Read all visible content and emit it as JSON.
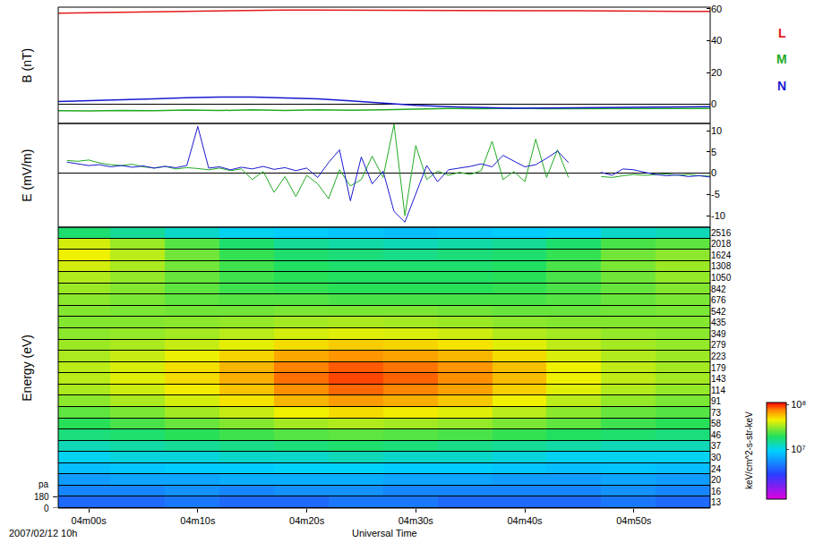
{
  "chart_data": [
    {
      "type": "line",
      "ylabel": "B (nT)",
      "xlim": [
        -2.8,
        57
      ],
      "ylim": [
        -12,
        61
      ],
      "yticks": [
        0,
        20,
        40,
        60
      ],
      "grid": false,
      "tick_labels": "y",
      "legend": "right",
      "x": [
        -2.8,
        0,
        3,
        6,
        9,
        12,
        15,
        18,
        21,
        24,
        27,
        30,
        33,
        36,
        39,
        42,
        45,
        48,
        51,
        54,
        57
      ],
      "series": [
        {
          "name": "L",
          "color": "#e41a1a",
          "values": [
            57.2,
            57.5,
            57.9,
            58.3,
            58.6,
            58.9,
            59.1,
            59.2,
            59.2,
            59.2,
            59.1,
            59.0,
            58.9,
            58.9,
            58.8,
            58.8,
            58.7,
            58.6,
            58.5,
            58.4,
            58.3
          ]
        },
        {
          "name": "M",
          "color": "#22aa22",
          "values": [
            -4.0,
            -4.2,
            -3.8,
            -4.0,
            -3.6,
            -3.9,
            -3.5,
            -3.8,
            -3.4,
            -3.7,
            -3.5,
            -3.0,
            -2.6,
            -2.8,
            -2.5,
            -2.7,
            -2.6,
            -2.8,
            -2.5,
            -2.7,
            -2.6
          ]
        },
        {
          "name": "N",
          "color": "#1a1ad0",
          "values": [
            1.8,
            2.2,
            2.8,
            3.4,
            4.1,
            4.6,
            4.6,
            4.2,
            3.4,
            2.2,
            0.8,
            -0.6,
            -1.5,
            -2.1,
            -2.4,
            -2.3,
            -2.2,
            -2.0,
            -1.8,
            -1.6,
            -1.5
          ]
        }
      ]
    },
    {
      "type": "line",
      "ylabel": "E (mV/m)",
      "xlim": [
        -2.8,
        57
      ],
      "ylim": [
        -12.7,
        11.7
      ],
      "yticks": [
        -10,
        -5,
        0,
        5,
        10
      ],
      "grid": false,
      "tick_labels": "y",
      "x": [
        -2,
        -1,
        0,
        1,
        2,
        3,
        4,
        5,
        6,
        7,
        8,
        9,
        10,
        11,
        12,
        13,
        14,
        15,
        16,
        17,
        18,
        19,
        20,
        21,
        22,
        23,
        24,
        25,
        26,
        27,
        28,
        29,
        30,
        31,
        32,
        33,
        34,
        35,
        36,
        37,
        38,
        39,
        40,
        41,
        42,
        43,
        44,
        45,
        46,
        47,
        48,
        49,
        50,
        51,
        52,
        53,
        54,
        55,
        56,
        57
      ],
      "series": [
        {
          "name": "M",
          "color": "#22aa22",
          "values": [
            3.0,
            2.8,
            3.1,
            2.4,
            2.0,
            1.8,
            2.1,
            1.5,
            1.2,
            1.6,
            1.0,
            1.3,
            1.1,
            0.8,
            1.2,
            0.6,
            1.0,
            -1.5,
            0.4,
            -4.5,
            -0.8,
            -5.5,
            -0.5,
            -2.5,
            -6.0,
            0.8,
            -3.0,
            -1.5,
            4.0,
            -1.0,
            11.5,
            -10.0,
            6.5,
            -1.5,
            0.5,
            -0.5,
            0.2,
            -0.3,
            0.6,
            7.5,
            -1.5,
            0.4,
            -2.0,
            8.0,
            -1.0,
            5.5,
            -1.0,
            null,
            null,
            -0.8,
            -1.0,
            -0.6,
            -0.3,
            -0.5,
            -0.4,
            -0.2,
            -0.5,
            -0.3,
            -0.6,
            -0.7
          ]
        },
        {
          "name": "N",
          "color": "#1a1ad0",
          "values": [
            2.6,
            2.2,
            1.8,
            2.0,
            1.5,
            1.8,
            1.4,
            1.7,
            1.2,
            1.6,
            1.3,
            1.8,
            11.0,
            1.2,
            1.5,
            0.8,
            1.4,
            1.0,
            1.6,
            0.9,
            1.3,
            0.6,
            1.2,
            -1.0,
            2.5,
            5.5,
            -6.5,
            3.8,
            -2.5,
            0.5,
            -9.0,
            -11.5,
            -5.0,
            1.8,
            -2.0,
            0.8,
            1.2,
            1.6,
            2.2,
            1.5,
            4.2,
            2.8,
            1.5,
            2.0,
            3.5,
            5.2,
            2.5,
            null,
            null,
            0.2,
            -0.5,
            1.0,
            0.8,
            0.2,
            -0.3,
            -0.6,
            -0.4,
            -0.8,
            -0.6,
            -0.9
          ]
        }
      ]
    },
    {
      "type": "heatmap",
      "ylabel": "Energy (eV)",
      "xlabel": "Universal Time",
      "date_label": "2007/02/12 10h",
      "pa_label": "pa",
      "pa_ticks": [
        180,
        0
      ],
      "grid": true,
      "xlim": [
        -2.8,
        57
      ],
      "xticks": [
        {
          "value": 0,
          "label": "04m00s"
        },
        {
          "value": 10,
          "label": "04m10s"
        },
        {
          "value": 20,
          "label": "04m20s"
        },
        {
          "value": 30,
          "label": "04m30s"
        },
        {
          "value": 40,
          "label": "04m40s"
        },
        {
          "value": 50,
          "label": "04m50s"
        }
      ],
      "x": [
        -2.8,
        2,
        7,
        12,
        17,
        22,
        27,
        32,
        37,
        42,
        47,
        52,
        57
      ],
      "y": [
        13,
        16,
        20,
        24,
        30,
        37,
        46,
        58,
        73,
        91,
        114,
        143,
        179,
        223,
        279,
        349,
        435,
        542,
        676,
        842,
        1050,
        1308,
        1624,
        2018,
        2516
      ],
      "colorbar_label": "keV/cm^2-s-str-keV",
      "zlim": [
        800000,
        110000000
      ],
      "zticks": [
        {
          "value": 10000000,
          "label": "10⁷"
        },
        {
          "value": 100000000,
          "label": "10⁸"
        }
      ],
      "cells": [
        [
          4000000.0,
          4000000.0,
          4500000.0,
          4000000.0,
          4000000.0,
          4500000.0,
          4500000.0,
          4000000.0,
          4000000.0,
          4000000.0,
          4500000.0,
          4000000.0
        ],
        [
          5000000.0,
          5000000.0,
          5500000.0,
          5000000.0,
          5500000.0,
          5500000.0,
          5000000.0,
          5000000.0,
          5000000.0,
          5000000.0,
          5500000.0,
          5000000.0
        ],
        [
          6000000.0,
          6500000.0,
          6500000.0,
          7000000.0,
          7000000.0,
          7000000.0,
          6500000.0,
          6500000.0,
          6000000.0,
          6000000.0,
          6500000.0,
          6000000.0
        ],
        [
          8000000.0,
          8500000.0,
          9000000.0,
          9000000.0,
          9500000.0,
          9500000.0,
          9000000.0,
          9000000.0,
          8500000.0,
          8000000.0,
          8500000.0,
          8000000.0
        ],
        [
          10000000.0,
          11000000.0,
          11000000.0,
          12000000.0,
          12000000.0,
          13000000.0,
          12000000.0,
          12000000.0,
          11000000.0,
          10000000.0,
          10000000.0,
          10000000.0
        ],
        [
          13000000.0,
          14000000.0,
          15000000.0,
          16000000.0,
          17000000.0,
          18000000.0,
          17000000.0,
          16000000.0,
          15000000.0,
          14000000.0,
          13000000.0,
          13000000.0
        ],
        [
          17000000.0,
          18000000.0,
          20000000.0,
          22000000.0,
          24000000.0,
          25000000.0,
          24000000.0,
          23000000.0,
          21000000.0,
          19000000.0,
          18000000.0,
          17000000.0
        ],
        [
          20000000.0,
          23000000.0,
          26000000.0,
          29000000.0,
          33000000.0,
          35000000.0,
          33000000.0,
          31000000.0,
          28000000.0,
          25000000.0,
          22000000.0,
          20000000.0
        ],
        [
          25000000.0,
          28000000.0,
          33000000.0,
          38000000.0,
          45000000.0,
          50000000.0,
          46000000.0,
          42000000.0,
          36000000.0,
          30000000.0,
          26000000.0,
          24000000.0
        ],
        [
          30000000.0,
          34000000.0,
          40000000.0,
          48000000.0,
          60000000.0,
          68000000.0,
          62000000.0,
          55000000.0,
          45000000.0,
          36000000.0,
          31000000.0,
          28000000.0
        ],
        [
          34000000.0,
          39000000.0,
          46000000.0,
          56000000.0,
          72000000.0,
          82000000.0,
          75000000.0,
          66000000.0,
          53000000.0,
          42000000.0,
          35000000.0,
          31000000.0
        ],
        [
          36000000.0,
          42000000.0,
          50000000.0,
          62000000.0,
          80000000.0,
          90000000.0,
          83000000.0,
          72000000.0,
          58000000.0,
          45000000.0,
          37000000.0,
          33000000.0
        ],
        [
          36000000.0,
          41000000.0,
          49000000.0,
          60000000.0,
          76000000.0,
          85000000.0,
          79000000.0,
          70000000.0,
          57000000.0,
          45000000.0,
          37000000.0,
          33000000.0
        ],
        [
          34000000.0,
          38000000.0,
          44000000.0,
          52000000.0,
          64000000.0,
          70000000.0,
          66000000.0,
          60000000.0,
          50000000.0,
          41000000.0,
          35000000.0,
          32000000.0
        ],
        [
          32000000.0,
          34000000.0,
          38000000.0,
          43000000.0,
          50000000.0,
          54000000.0,
          52000000.0,
          48000000.0,
          42000000.0,
          37000000.0,
          33000000.0,
          31000000.0
        ],
        [
          30000000.0,
          31000000.0,
          33000000.0,
          36000000.0,
          40000000.0,
          42000000.0,
          41000000.0,
          39000000.0,
          35000000.0,
          33000000.0,
          31000000.0,
          30000000.0
        ],
        [
          29000000.0,
          29000000.0,
          30000000.0,
          31000000.0,
          33000000.0,
          34000000.0,
          33000000.0,
          32000000.0,
          30000000.0,
          29000000.0,
          29000000.0,
          29000000.0
        ],
        [
          29000000.0,
          28000000.0,
          27000000.0,
          27000000.0,
          28000000.0,
          28000000.0,
          28000000.0,
          27000000.0,
          26000000.0,
          26000000.0,
          27000000.0,
          28000000.0
        ],
        [
          30000000.0,
          28000000.0,
          25000000.0,
          24000000.0,
          24000000.0,
          23000000.0,
          23000000.0,
          23000000.0,
          23000000.0,
          24000000.0,
          26000000.0,
          28000000.0
        ],
        [
          32000000.0,
          29000000.0,
          25000000.0,
          22000000.0,
          21000000.0,
          20000000.0,
          20000000.0,
          20000000.0,
          21000000.0,
          23000000.0,
          26000000.0,
          29000000.0
        ],
        [
          35000000.0,
          31000000.0,
          26000000.0,
          22000000.0,
          20000000.0,
          19000000.0,
          19000000.0,
          19000000.0,
          20000000.0,
          23000000.0,
          27000000.0,
          31000000.0
        ],
        [
          40000000.0,
          34000000.0,
          27000000.0,
          22000000.0,
          19000000.0,
          18000000.0,
          18000000.0,
          18000000.0,
          19000000.0,
          23000000.0,
          28000000.0,
          32000000.0
        ],
        [
          45000000.0,
          36000000.0,
          27000000.0,
          21000000.0,
          18000000.0,
          17000000.0,
          16000000.0,
          17000000.0,
          18000000.0,
          21000000.0,
          27000000.0,
          30000000.0
        ],
        [
          40000000.0,
          32000000.0,
          24000000.0,
          18000000.0,
          15000000.0,
          14000000.0,
          13000000.0,
          14000000.0,
          15000000.0,
          18000000.0,
          23000000.0,
          25000000.0
        ],
        [
          18000000.0,
          15000000.0,
          12000000.0,
          10000000.0,
          9000000.0,
          8500000.0,
          8000000.0,
          8500000.0,
          9000000.0,
          10000000.0,
          12000000.0,
          13000000.0
        ]
      ]
    }
  ]
}
